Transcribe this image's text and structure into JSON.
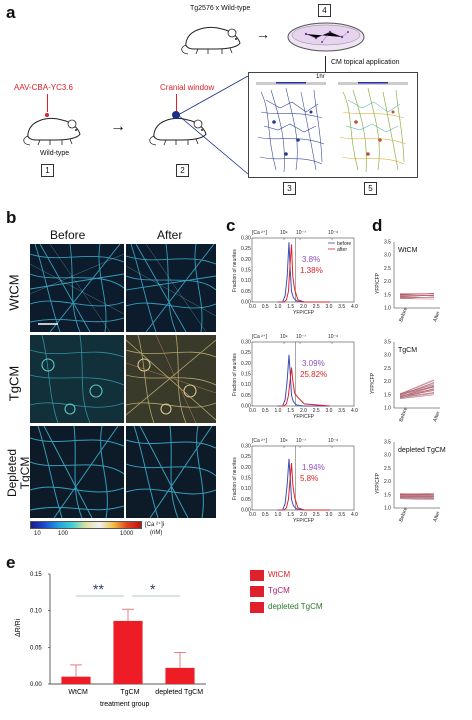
{
  "panels": {
    "a": "a",
    "b": "b",
    "c": "c",
    "d": "d",
    "e": "e"
  },
  "panel_a": {
    "cross_label": "Tg2576 x Wild-type",
    "aav_label": "AAV-CBA-YC3.6",
    "wildtype_label": "Wild-type",
    "window_label": "Cranial window",
    "cm_label": "CM topical application",
    "time_label": "1hr",
    "steps": [
      "1",
      "2",
      "3",
      "4",
      "5"
    ]
  },
  "panel_b": {
    "col_headers": [
      "Before",
      "After"
    ],
    "row_labels": [
      "WtCM",
      "TgCM",
      "Depleted\nTgCM"
    ],
    "colorbar": {
      "ticks": [
        "10",
        "100",
        "1000"
      ],
      "unit_line1": "[Ca ²⁺]i",
      "unit_line2": "(nM)"
    }
  },
  "panel_c": {
    "top_axis_label": "[Ca ²⁺]",
    "top_ticks": [
      "10⁹",
      "10⁻⁷",
      "10⁻⁶"
    ],
    "xlabel": "YFP/CFP",
    "ylabel": "Fraction of neurites",
    "xticks": [
      "0.0",
      "0.5",
      "1.0",
      "1.5",
      "2.0",
      "2.5",
      "3.0",
      "3.5",
      "4.0"
    ],
    "yticks": [
      "0.00",
      "0.05",
      "0.10",
      "0.15",
      "0.20",
      "0.25",
      "0.30"
    ],
    "legend": {
      "before": "before",
      "after": "after"
    },
    "colors": {
      "before": "#3a4fb5",
      "after": "#e0202a",
      "before_text": "#8a4fc0",
      "after_text": "#e0202a"
    },
    "subplots": [
      {
        "before_pct": "3.8%",
        "after_pct": "1.38%"
      },
      {
        "before_pct": "3.09%",
        "after_pct": "25.82%"
      },
      {
        "before_pct": "1.94%",
        "after_pct": "5.8%"
      }
    ]
  },
  "panel_d": {
    "ylabel": "YFP/CFP",
    "xticks": [
      "Before",
      "After"
    ],
    "yticks": [
      "1.0",
      "1.5",
      "2.0",
      "2.5",
      "3.0",
      "3.5"
    ],
    "subplots": [
      {
        "title": "WtCM",
        "shows_ylabel": false
      },
      {
        "title": "TgCM",
        "shows_ylabel": true
      },
      {
        "title": "depleted TgCM",
        "shows_ylabel": false
      }
    ]
  },
  "chart_data": [
    {
      "type": "bar",
      "categories": [
        "WtCM",
        "TgCM",
        "depleted TgCM"
      ],
      "values": [
        0.01,
        0.086,
        0.022
      ],
      "errors": [
        0.016,
        0.016,
        0.021
      ],
      "xlabel": "treatment group",
      "ylabel": "ΔR/Ri",
      "ylim": [
        0,
        0.15
      ],
      "yticks": [
        "0.00",
        "0.05",
        "0.10",
        "0.15"
      ],
      "significance": [
        "**",
        "*"
      ],
      "legend": [
        "WtCM",
        "TgCM",
        "depleted TgCM"
      ],
      "legend_colors": [
        "#e0202a",
        "#e0202a",
        "#e0202a"
      ],
      "legend_text_colors": [
        "#e0202a",
        "#b02070",
        "#2a7a2a"
      ],
      "bar_color": "#ee1c24"
    }
  ]
}
